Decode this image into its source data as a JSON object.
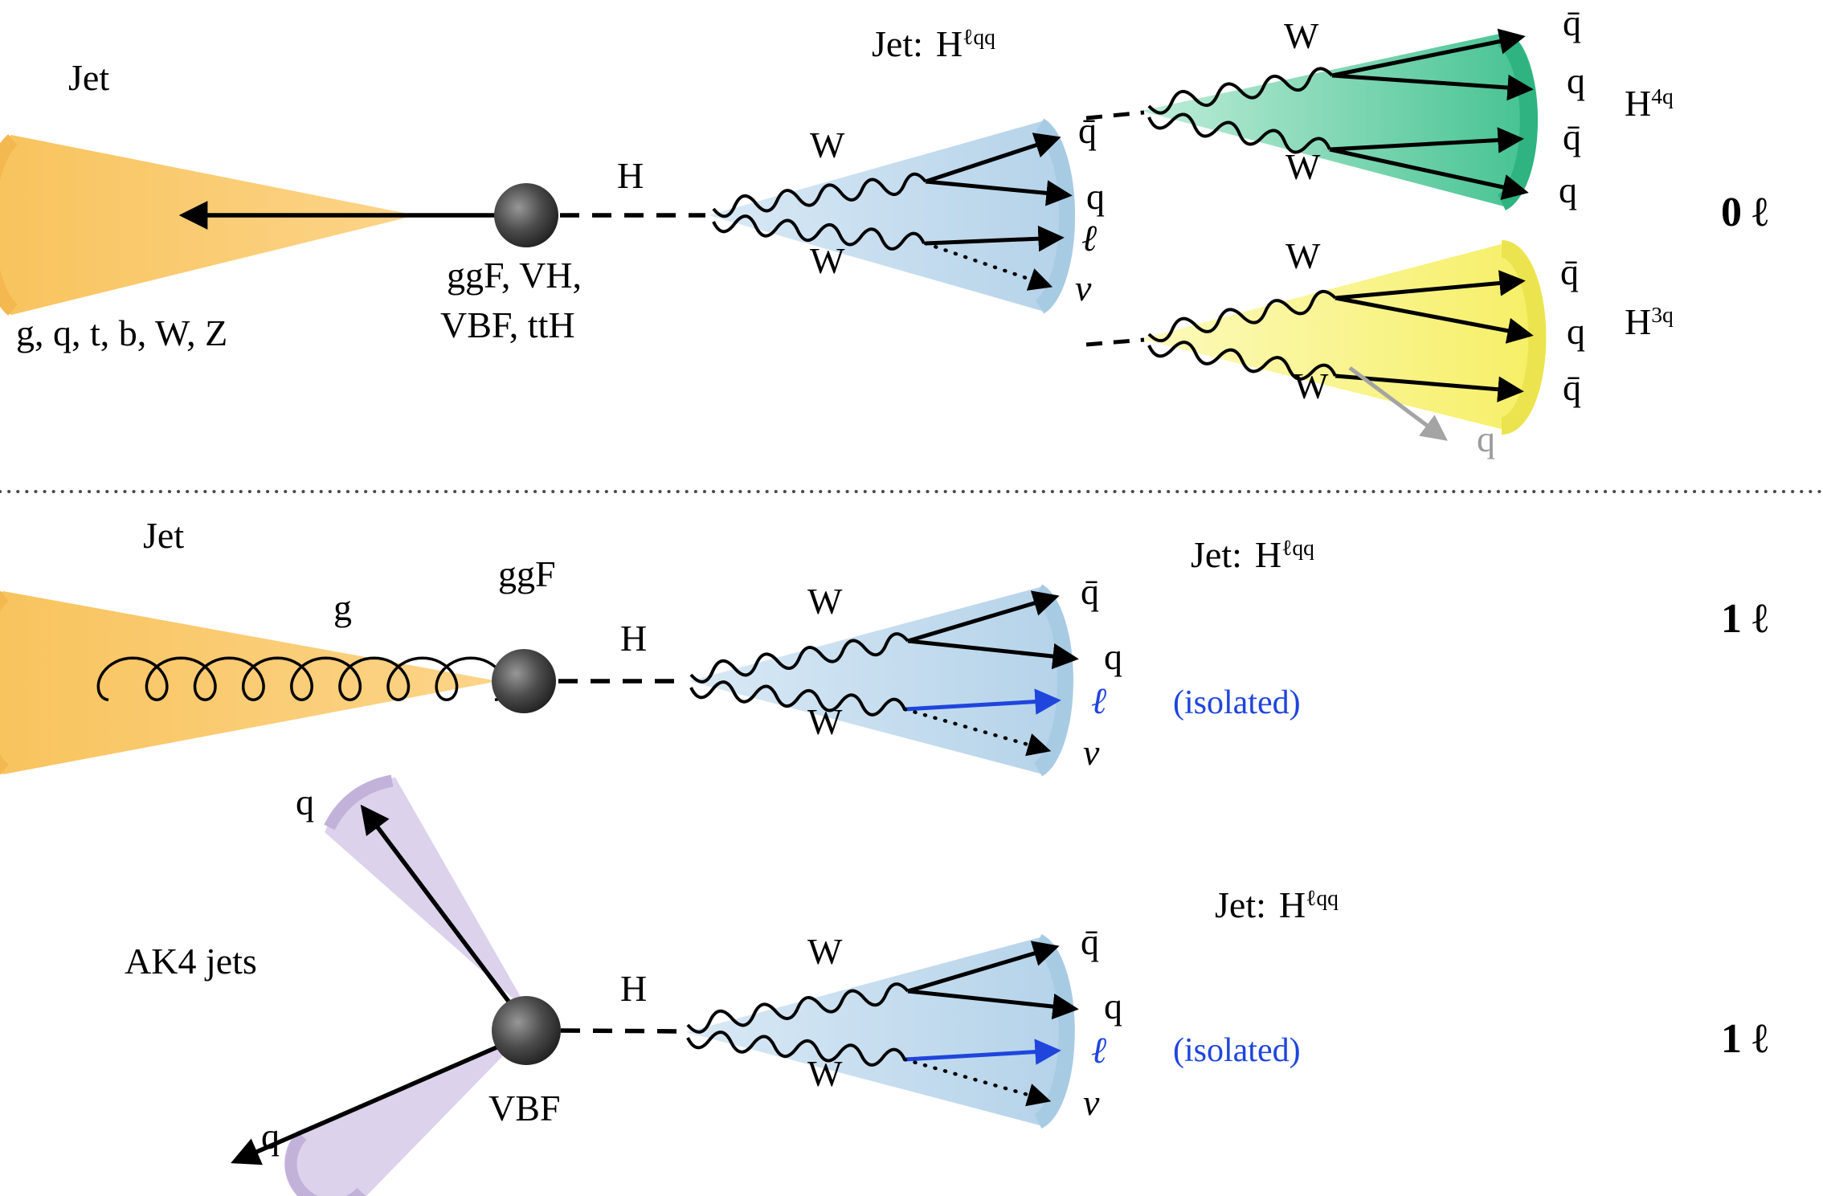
{
  "colors": {
    "jet_orange": "#f9c45e",
    "wqq_blue": "#bdd7ee",
    "h4q_green": "#4ec79a",
    "h3q_yellow": "#f7f06e",
    "vbf_purple": "#d9cdea",
    "lepton_blue": "#1f45dd",
    "gray_q": "#9b9b9b"
  },
  "top": {
    "jet_label": "Jet",
    "jet_particles": "g, q, t, b, W, Z",
    "production_line1": "ggF, VH,",
    "production_line2": "VBF, ttH",
    "higgs": "H",
    "jet_type": {
      "prefix": "Jet:",
      "base": "H",
      "sup": "ℓqq"
    },
    "w_upper": "W",
    "w_lower": "W",
    "products": {
      "qbar": "q̄",
      "q": "q",
      "lepton": "ℓ",
      "neutrino": "ν"
    },
    "green": {
      "w_upper": "W",
      "w_lower": "W",
      "products": [
        "q̄",
        "q",
        "q̄",
        "q"
      ],
      "tag": {
        "base": "H",
        "sup": "4q"
      }
    },
    "yellow": {
      "w_upper": "W",
      "w_lower": "W",
      "products": [
        "q̄",
        "q",
        "q̄"
      ],
      "extra_q": "q",
      "tag": {
        "base": "H",
        "sup": "3q"
      }
    },
    "category": "0 ℓ"
  },
  "middle": {
    "jet_label": "Jet",
    "gluon": "g",
    "production": "ggF",
    "higgs": "H",
    "w_upper": "W",
    "w_lower": "W",
    "jet_type": {
      "prefix": "Jet:",
      "base": "H",
      "sup": "ℓqq"
    },
    "products": {
      "qbar": "q̄",
      "q": "q",
      "lepton": "ℓ",
      "neutrino": "ν"
    },
    "isolated": "(isolated)",
    "category": "1 ℓ"
  },
  "bottom": {
    "ak4_label": "AK4 jets",
    "q_up": "q",
    "q_down": "q",
    "production": "VBF",
    "higgs": "H",
    "w_upper": "W",
    "w_lower": "W",
    "jet_type": {
      "prefix": "Jet:",
      "base": "H",
      "sup": "ℓqq"
    },
    "products": {
      "qbar": "q̄",
      "q": "q",
      "lepton": "ℓ",
      "neutrino": "ν"
    },
    "isolated": "(isolated)",
    "category": "1 ℓ"
  }
}
